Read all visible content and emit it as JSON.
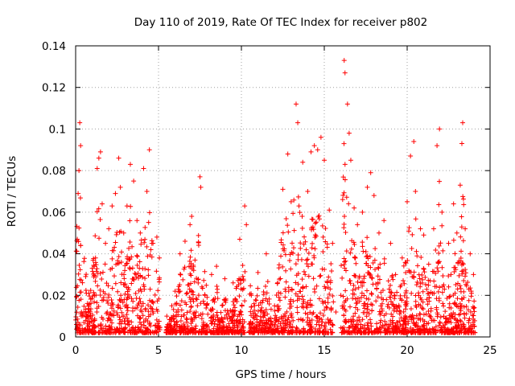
{
  "chart_data": {
    "type": "scatter",
    "title": "Day 110 of 2019, Rate Of TEC Index for receiver p802",
    "xlabel": "GPS time / hours",
    "ylabel": "ROTI / TECUs",
    "xlim": [
      0,
      25
    ],
    "ylim": [
      0,
      0.14
    ],
    "x_ticks": [
      0,
      5,
      10,
      15,
      20,
      25
    ],
    "x_tick_labels": [
      "0",
      "5",
      "10",
      "15",
      "20",
      "25"
    ],
    "y_ticks": [
      0,
      0.02,
      0.04,
      0.06,
      0.08,
      0.1,
      0.12,
      0.14
    ],
    "y_tick_labels": [
      "0",
      "0.02",
      "0.04",
      "0.06",
      "0.08",
      "0.1",
      "0.12",
      "0.14"
    ],
    "grid": true,
    "marker": "plus",
    "marker_color": "#ff0000",
    "series": [
      {
        "name": "ROTI",
        "points": [
          [
            0.05,
            0.006
          ],
          [
            0.1,
            0.047
          ],
          [
            0.15,
            0.069
          ],
          [
            0.2,
            0.08
          ],
          [
            0.25,
            0.103
          ],
          [
            0.3,
            0.092
          ],
          [
            0.35,
            0.012
          ],
          [
            0.4,
            0.004
          ],
          [
            0.6,
            0.008
          ],
          [
            0.8,
            0.021
          ],
          [
            1.0,
            0.033
          ],
          [
            1.2,
            0.038
          ],
          [
            1.3,
            0.081
          ],
          [
            1.4,
            0.086
          ],
          [
            1.5,
            0.089
          ],
          [
            1.6,
            0.064
          ],
          [
            1.8,
            0.045
          ],
          [
            2.0,
            0.052
          ],
          [
            2.2,
            0.063
          ],
          [
            2.4,
            0.069
          ],
          [
            2.6,
            0.086
          ],
          [
            2.7,
            0.072
          ],
          [
            2.9,
            0.05
          ],
          [
            3.1,
            0.063
          ],
          [
            3.3,
            0.083
          ],
          [
            3.5,
            0.075
          ],
          [
            3.7,
            0.056
          ],
          [
            3.9,
            0.05
          ],
          [
            4.1,
            0.081
          ],
          [
            4.3,
            0.07
          ],
          [
            4.45,
            0.09
          ],
          [
            4.6,
            0.045
          ],
          [
            4.9,
            0.048
          ],
          [
            5.05,
            0.038
          ],
          [
            5.5,
            0.01
          ],
          [
            5.8,
            0.015
          ],
          [
            6.0,
            0.022
          ],
          [
            6.3,
            0.04
          ],
          [
            6.6,
            0.046
          ],
          [
            6.9,
            0.054
          ],
          [
            7.0,
            0.058
          ],
          [
            7.2,
            0.037
          ],
          [
            7.5,
            0.077
          ],
          [
            7.55,
            0.072
          ],
          [
            7.8,
            0.02
          ],
          [
            8.2,
            0.03
          ],
          [
            8.5,
            0.034
          ],
          [
            9.0,
            0.028
          ],
          [
            9.5,
            0.026
          ],
          [
            9.9,
            0.047
          ],
          [
            10.2,
            0.063
          ],
          [
            10.3,
            0.054
          ],
          [
            10.6,
            0.02
          ],
          [
            11.0,
            0.031
          ],
          [
            11.5,
            0.04
          ],
          [
            12.0,
            0.015
          ],
          [
            12.5,
            0.071
          ],
          [
            12.8,
            0.088
          ],
          [
            13.0,
            0.065
          ],
          [
            13.3,
            0.112
          ],
          [
            13.4,
            0.103
          ],
          [
            13.7,
            0.084
          ],
          [
            14.0,
            0.07
          ],
          [
            14.2,
            0.089
          ],
          [
            14.4,
            0.092
          ],
          [
            14.6,
            0.09
          ],
          [
            14.8,
            0.096
          ],
          [
            15.0,
            0.085
          ],
          [
            15.3,
            0.061
          ],
          [
            15.5,
            0.045
          ],
          [
            15.7,
            0.012
          ],
          [
            16.0,
            0.02
          ],
          [
            16.2,
            0.133
          ],
          [
            16.25,
            0.127
          ],
          [
            16.4,
            0.112
          ],
          [
            16.5,
            0.098
          ],
          [
            16.6,
            0.085
          ],
          [
            16.8,
            0.062
          ],
          [
            17.0,
            0.054
          ],
          [
            17.3,
            0.06
          ],
          [
            17.6,
            0.072
          ],
          [
            17.8,
            0.079
          ],
          [
            18.0,
            0.068
          ],
          [
            18.3,
            0.05
          ],
          [
            18.6,
            0.056
          ],
          [
            19.0,
            0.045
          ],
          [
            19.3,
            0.03
          ],
          [
            19.7,
            0.038
          ],
          [
            20.0,
            0.065
          ],
          [
            20.2,
            0.087
          ],
          [
            20.4,
            0.094
          ],
          [
            20.5,
            0.07
          ],
          [
            20.8,
            0.052
          ],
          [
            21.0,
            0.049
          ],
          [
            21.3,
            0.035
          ],
          [
            21.6,
            0.052
          ],
          [
            21.8,
            0.092
          ],
          [
            21.95,
            0.1
          ],
          [
            22.1,
            0.06
          ],
          [
            22.5,
            0.045
          ],
          [
            22.8,
            0.064
          ],
          [
            23.0,
            0.05
          ],
          [
            23.2,
            0.073
          ],
          [
            23.3,
            0.093
          ],
          [
            23.35,
            0.103
          ],
          [
            23.5,
            0.052
          ],
          [
            23.8,
            0.04
          ],
          [
            24.0,
            0.03
          ],
          [
            24.05,
            0.005
          ]
        ]
      }
    ]
  }
}
